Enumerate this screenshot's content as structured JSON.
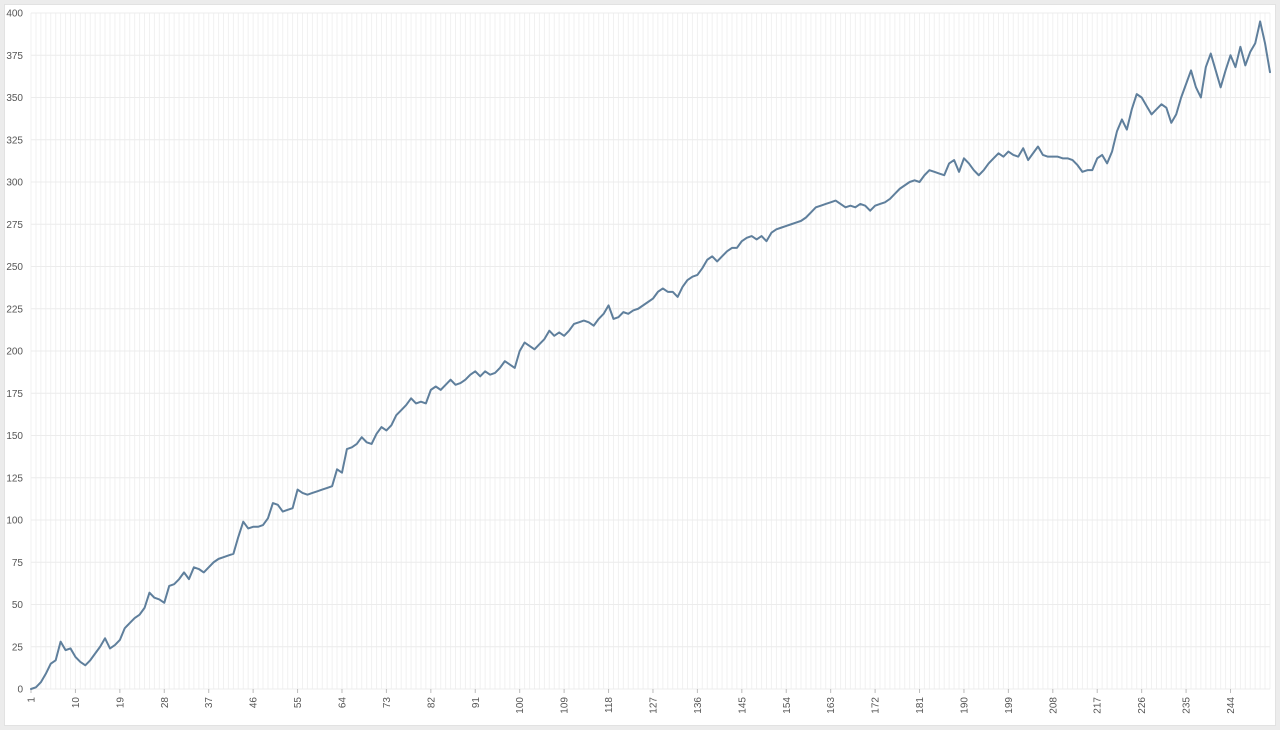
{
  "chart_data": {
    "type": "line",
    "title": "",
    "xlabel": "",
    "ylabel": "",
    "xlim": [
      1,
      248
    ],
    "ylim": [
      0,
      400
    ],
    "y_ticks": [
      0,
      25,
      50,
      75,
      100,
      125,
      150,
      175,
      200,
      225,
      250,
      275,
      300,
      325,
      350,
      375,
      400
    ],
    "x_tick_labels": [
      1,
      10,
      19,
      28,
      37,
      46,
      55,
      64,
      73,
      82,
      91,
      100,
      109,
      118,
      127,
      136,
      145,
      154,
      163,
      172,
      181,
      190,
      199,
      208,
      217,
      226,
      235,
      244
    ],
    "grid": true,
    "legend": "none",
    "colors": {
      "line": "#5f7f9c",
      "grid": "#ececec",
      "tick_text": "#555555"
    },
    "series": [
      {
        "values": [
          0,
          1,
          4,
          9,
          15,
          17,
          28,
          23,
          24,
          19,
          16,
          14,
          17,
          21,
          25,
          30,
          24,
          26,
          29,
          36,
          39,
          42,
          44,
          48,
          57,
          54,
          53,
          51,
          61,
          62,
          65,
          69,
          65,
          72,
          71,
          69,
          72,
          75,
          77,
          78,
          79,
          80,
          90,
          99,
          95,
          96,
          96,
          97,
          101,
          110,
          109,
          105,
          106,
          107,
          118,
          116,
          115,
          116,
          117,
          118,
          119,
          120,
          130,
          128,
          142,
          143,
          145,
          149,
          146,
          145,
          151,
          155,
          153,
          156,
          162,
          165,
          168,
          172,
          169,
          170,
          169,
          177,
          179,
          177,
          180,
          183,
          180,
          181,
          183,
          186,
          188,
          185,
          188,
          186,
          187,
          190,
          194,
          192,
          190,
          200,
          205,
          203,
          201,
          204,
          207,
          212,
          209,
          211,
          209,
          212,
          216,
          217,
          218,
          217,
          215,
          219,
          222,
          227,
          219,
          220,
          223,
          222,
          224,
          225,
          227,
          229,
          231,
          235,
          237,
          235,
          235,
          232,
          238,
          242,
          244,
          245,
          249,
          254,
          256,
          253,
          256,
          259,
          261,
          261,
          265,
          267,
          268,
          266,
          268,
          265,
          270,
          272,
          273,
          274,
          275,
          276,
          277,
          279,
          282,
          285,
          286,
          287,
          288,
          289,
          287,
          285,
          286,
          285,
          287,
          286,
          283,
          286,
          287,
          288,
          290,
          293,
          296,
          298,
          300,
          301,
          300,
          304,
          307,
          306,
          305,
          304,
          311,
          313,
          306,
          314,
          311,
          307,
          304,
          307,
          311,
          314,
          317,
          315,
          318,
          316,
          315,
          320,
          313,
          317,
          321,
          316,
          315,
          315,
          315,
          314,
          314,
          313,
          310,
          306,
          307,
          307,
          314,
          316,
          311,
          318,
          330,
          337,
          331,
          343,
          352,
          350,
          345,
          340,
          343,
          346,
          344,
          335,
          340,
          350,
          358,
          366,
          356,
          350,
          368,
          376,
          366,
          356,
          366,
          375,
          368,
          380,
          369,
          377,
          382,
          395,
          382,
          365
        ]
      }
    ]
  }
}
